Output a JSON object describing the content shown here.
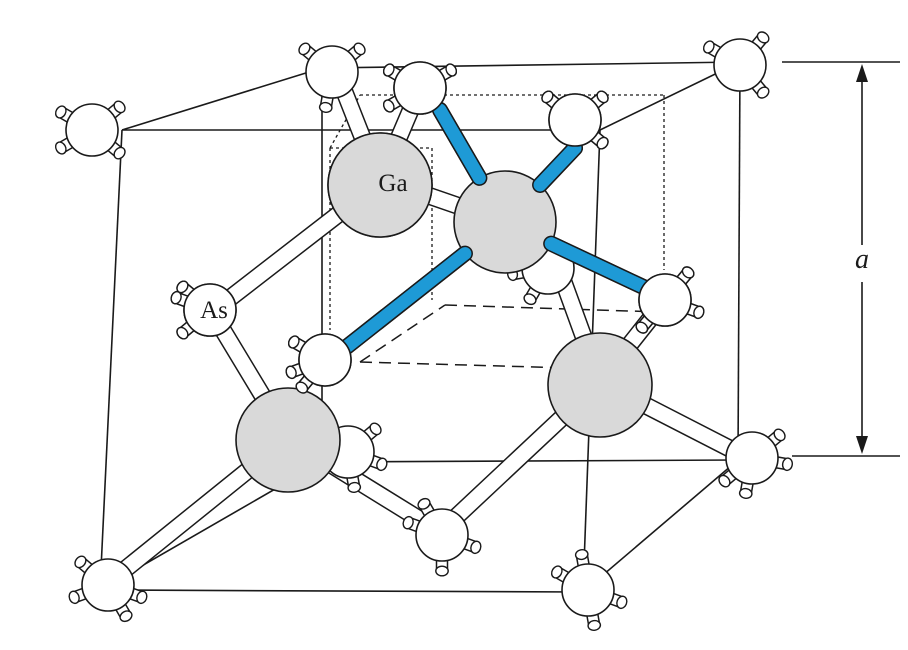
{
  "labels": {
    "ga": "Ga",
    "as": "As",
    "dimension": "a"
  },
  "colors": {
    "stroke": "#1a1a1a",
    "ga_fill": "#d9d9d9",
    "as_fill": "#ffffff",
    "highlight_bond": "#1e9ad6",
    "plain_bond": "#ffffff"
  }
}
